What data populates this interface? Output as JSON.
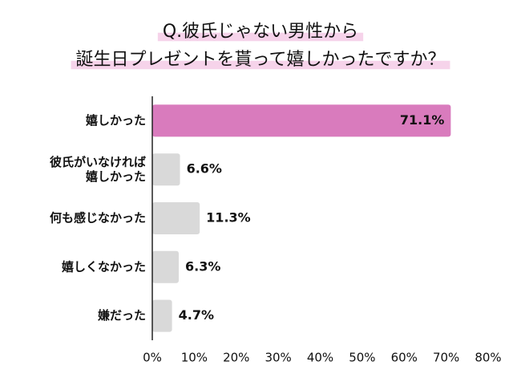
{
  "chart_data": {
    "type": "bar",
    "orientation": "horizontal",
    "title": [
      "Q.彼氏じゃない男性から",
      "誕生日プレゼントを貰って嬉しかったですか？"
    ],
    "categories": [
      "嬉しかった",
      "彼氏がいなければ\n嬉しかった",
      "何も感じなかった",
      "嬉しくなかった",
      "嫌だった"
    ],
    "values": [
      71.1,
      6.6,
      11.3,
      6.3,
      4.7
    ],
    "value_labels": [
      "71.1%",
      "6.6%",
      "11.3%",
      "6.3%",
      "4.7%"
    ],
    "colors": [
      "#d97bbd",
      "#d9d9d9",
      "#d9d9d9",
      "#d9d9d9",
      "#d9d9d9"
    ],
    "xlim": [
      0,
      80
    ],
    "xticks": [
      {
        "value": 0,
        "label": "0%"
      },
      {
        "value": 10,
        "label": "10%"
      },
      {
        "value": 20,
        "label": "20%"
      },
      {
        "value": 30,
        "label": "30%"
      },
      {
        "value": 40,
        "label": "40%"
      },
      {
        "value": 50,
        "label": "50%"
      },
      {
        "value": 60,
        "label": "60%"
      },
      {
        "value": 70,
        "label": "70%"
      },
      {
        "value": 80,
        "label": "80%"
      }
    ],
    "grid": false
  }
}
